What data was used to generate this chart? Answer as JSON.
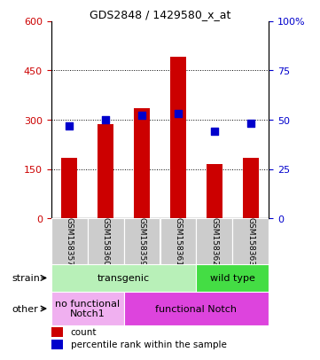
{
  "title": "GDS2848 / 1429580_x_at",
  "samples": [
    "GSM158357",
    "GSM158360",
    "GSM158359",
    "GSM158361",
    "GSM158362",
    "GSM158363"
  ],
  "counts": [
    185,
    285,
    335,
    490,
    165,
    185
  ],
  "percentiles": [
    47,
    50,
    52,
    53,
    44,
    48
  ],
  "ylim_left": [
    0,
    600
  ],
  "ylim_right": [
    0,
    100
  ],
  "yticks_left": [
    0,
    150,
    300,
    450,
    600
  ],
  "yticks_right": [
    0,
    25,
    50,
    75,
    100
  ],
  "ytick_right_labels": [
    "0",
    "25",
    "50",
    "75",
    "100%"
  ],
  "bar_color": "#cc0000",
  "dot_color": "#0000cc",
  "strain_groups": [
    {
      "label": "transgenic",
      "start": 0,
      "end": 4,
      "color": "#b8f0b8"
    },
    {
      "label": "wild type",
      "start": 4,
      "end": 6,
      "color": "#44dd44"
    }
  ],
  "other_groups": [
    {
      "label": "no functional\nNotch1",
      "start": 0,
      "end": 2,
      "color": "#f0b0f0"
    },
    {
      "label": "functional Notch",
      "start": 2,
      "end": 6,
      "color": "#dd44dd"
    }
  ],
  "legend_count_label": "count",
  "legend_pct_label": "percentile rank within the sample",
  "left_axis_color": "#cc0000",
  "right_axis_color": "#0000cc",
  "background_color": "#ffffff",
  "grid_color": "#000000",
  "tick_label_bg": "#cccccc"
}
